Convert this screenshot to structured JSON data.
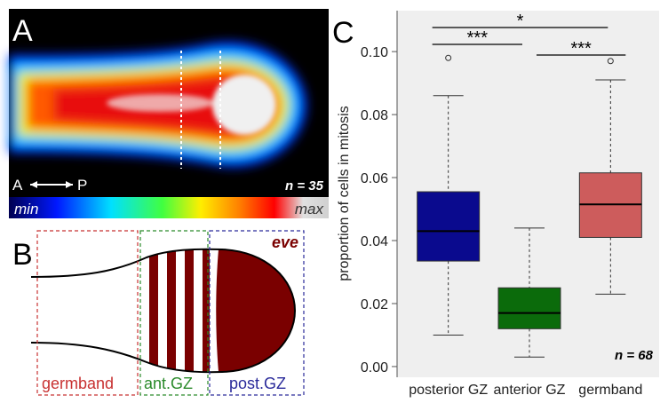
{
  "panels": {
    "a": {
      "label": "A",
      "anterior": "A",
      "posterior": "P",
      "n_label": "n = 35",
      "scale_min": "min",
      "scale_max": "max"
    },
    "b": {
      "label": "B",
      "gene": "eve",
      "regions": [
        "germband",
        "ant.GZ",
        "post.GZ"
      ]
    }
  },
  "chart_data": {
    "type": "box",
    "panel_label": "C",
    "y_label": "proportion of cells in mitosis",
    "categories": [
      "posterior GZ",
      "anterior GZ",
      "germband"
    ],
    "colors": [
      "#0a0a8e",
      "#0b6b0b",
      "#cd5c5c"
    ],
    "boxes": [
      {
        "whisker_low": 0.01,
        "q1": 0.0335,
        "median": 0.043,
        "q3": 0.0555,
        "whisker_high": 0.086,
        "outliers": [
          0.098
        ]
      },
      {
        "whisker_low": 0.003,
        "q1": 0.012,
        "median": 0.017,
        "q3": 0.025,
        "whisker_high": 0.044,
        "outliers": []
      },
      {
        "whisker_low": 0.023,
        "q1": 0.041,
        "median": 0.0515,
        "q3": 0.0615,
        "whisker_high": 0.091,
        "outliers": [
          0.097
        ]
      }
    ],
    "ylim": [
      -0.0034,
      0.113
    ],
    "yticks": [
      {
        "value": 0,
        "label": "0.00"
      },
      {
        "value": 0.02,
        "label": "0.02"
      },
      {
        "value": 0.04,
        "label": "0.04"
      },
      {
        "value": 0.06,
        "label": "0.06"
      },
      {
        "value": 0.08,
        "label": "0.08"
      },
      {
        "value": 0.1,
        "label": "0.10"
      }
    ],
    "significance": [
      "***",
      "*",
      "***"
    ],
    "n_label": "n = 68"
  }
}
